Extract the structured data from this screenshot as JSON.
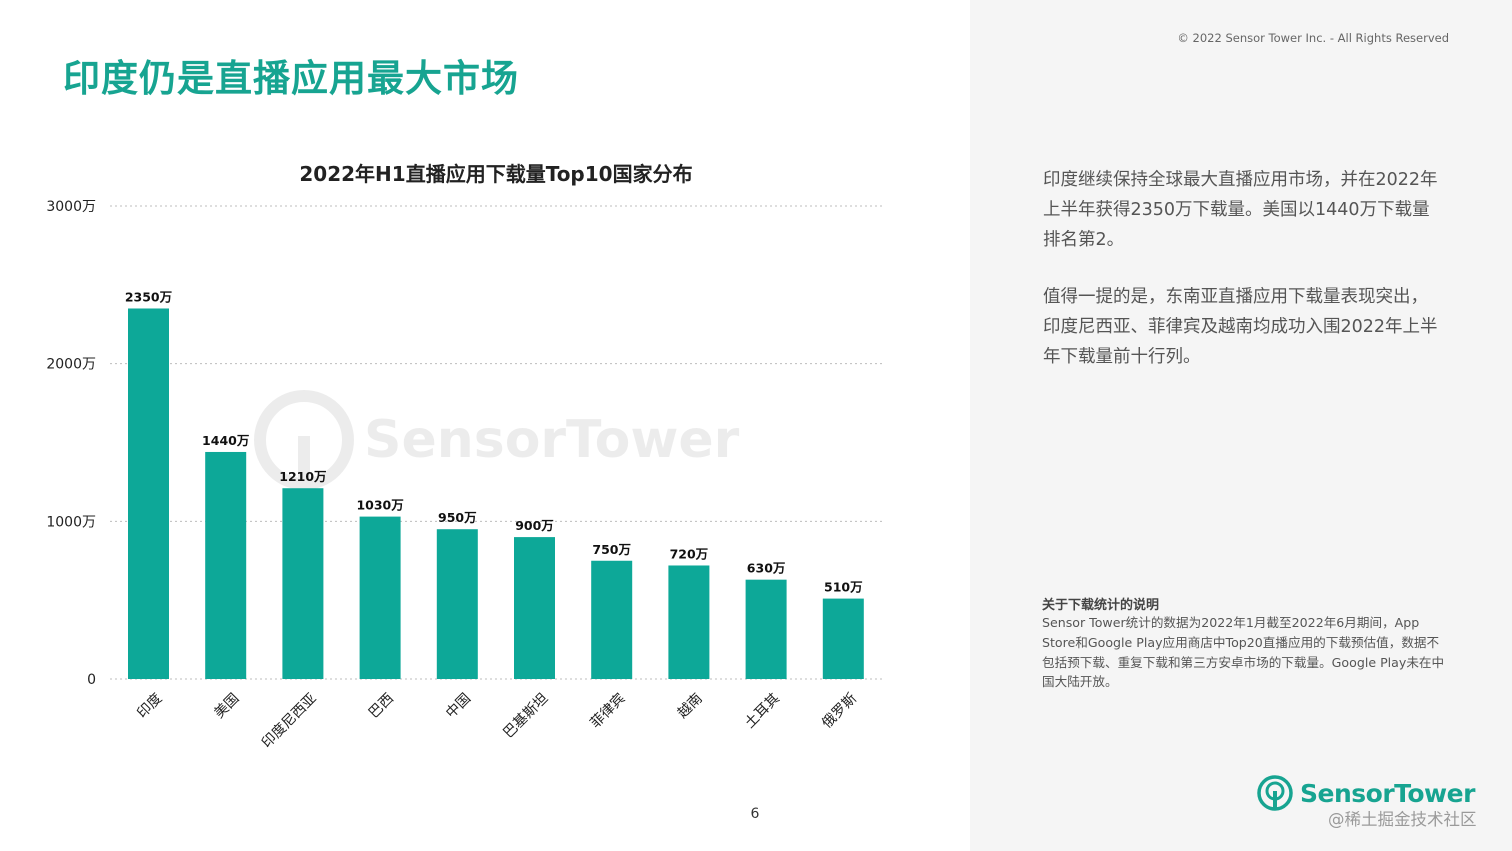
{
  "header": {
    "title": "印度仍是直播应用最大市场",
    "copyright": "© 2022 Sensor Tower Inc. - All Rights Reserved"
  },
  "chart_data": {
    "type": "bar",
    "title": "2022年H1直播应用下载量Top10国家分布",
    "categories": [
      "印度",
      "美国",
      "印度尼西亚",
      "巴西",
      "中国",
      "巴基斯坦",
      "菲律宾",
      "越南",
      "土耳其",
      "俄罗斯"
    ],
    "values": [
      2350,
      1440,
      1210,
      1030,
      950,
      900,
      750,
      720,
      630,
      510
    ],
    "data_labels": [
      "2350万",
      "1440万",
      "1210万",
      "1030万",
      "950万",
      "900万",
      "750万",
      "720万",
      "630万",
      "510万"
    ],
    "y_ticks": [
      0,
      1000,
      2000,
      3000
    ],
    "y_tick_labels": [
      "0",
      "1000万",
      "2000万",
      "3000万"
    ],
    "ylim": [
      0,
      3000
    ],
    "grid": true,
    "bar_color": "#0da898",
    "gridline_color": "#bdbdbd"
  },
  "side": {
    "paragraph1": "印度继续保持全球最大直播应用市场，并在2022年上半年获得2350万下载量。美国以1440万下载量排名第2。",
    "paragraph2": "值得一提的是，东南亚直播应用下载量表现突出，印度尼西亚、菲律宾及越南均成功入围2022年上半年下载量前十行列。",
    "note_title": "关于下载统计的说明",
    "note_body": "Sensor Tower统计的数据为2022年1月截至2022年6月期间，App Store和Google Play应用商店中Top20直播应用的下载预估值，数据不包括预下载、重复下载和第三方安卓市场的下载量。Google Play未在中国大陆开放。"
  },
  "footer": {
    "page_number": "6",
    "logo_text": "SensorTower",
    "watermark": "@稀土掘金技术社区"
  },
  "background_watermark": "SensorTower",
  "colors": {
    "accent": "#17a491",
    "panel": "#f5f5f5"
  }
}
